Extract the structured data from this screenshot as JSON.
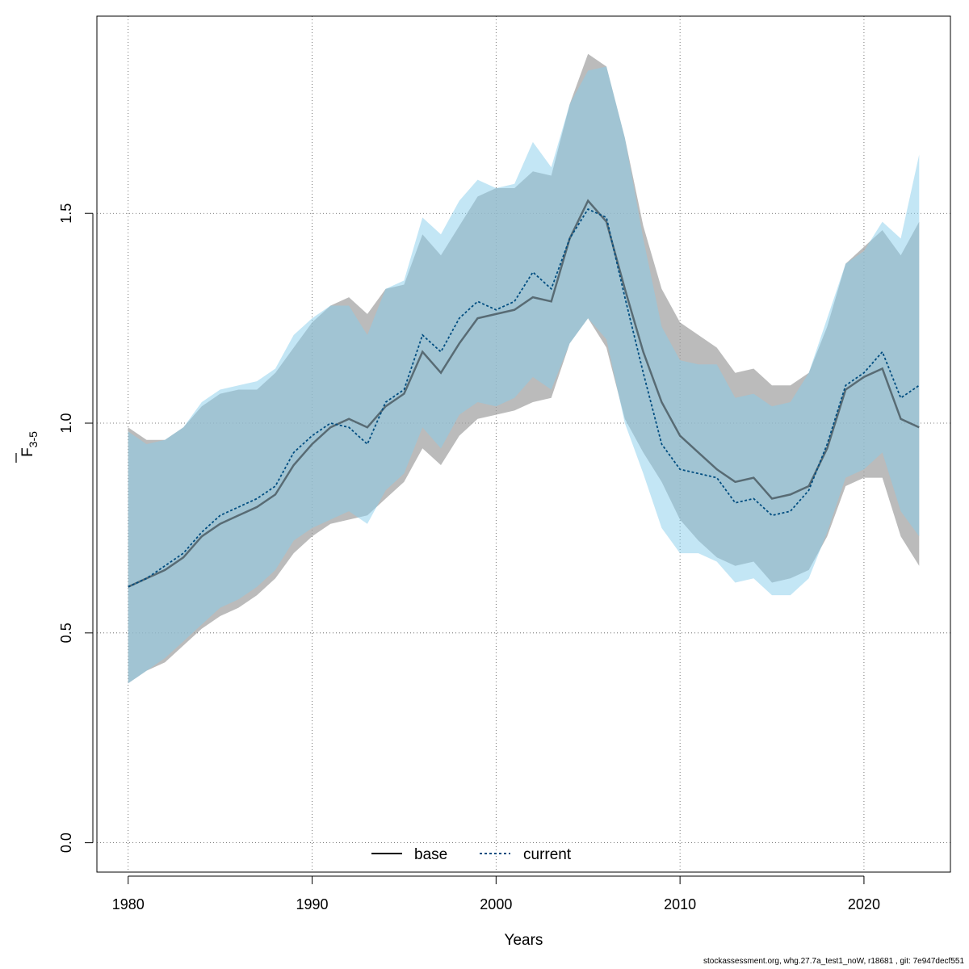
{
  "chart_data": {
    "type": "line",
    "xlabel": "Years",
    "ylabel": "F",
    "ylabel_subscript": "3-5",
    "xlim": [
      1978.3,
      2024.7
    ],
    "ylim": [
      -0.07,
      1.97
    ],
    "x_ticks": [
      1980,
      1990,
      2000,
      2010,
      2020
    ],
    "y_ticks": [
      0.0,
      0.5,
      1.0,
      1.5
    ],
    "y_tick_labels": [
      "0.0",
      "0.5",
      "1.0",
      "1.5"
    ],
    "grid": true,
    "legend": {
      "position": "bottom",
      "entries": [
        "base",
        "current"
      ]
    },
    "colors": {
      "base_band": "#9e9e9e",
      "current_band": "#87ceeb",
      "base_line": "#000000",
      "current_line": "#004d80"
    },
    "x": [
      1980,
      1981,
      1982,
      1983,
      1984,
      1985,
      1986,
      1987,
      1988,
      1989,
      1990,
      1991,
      1992,
      1993,
      1994,
      1995,
      1996,
      1997,
      1998,
      1999,
      2000,
      2001,
      2002,
      2003,
      2004,
      2005,
      2006,
      2007,
      2008,
      2009,
      2010,
      2011,
      2012,
      2013,
      2014,
      2015,
      2016,
      2017,
      2018,
      2019,
      2020,
      2021,
      2022,
      2023
    ],
    "series": [
      {
        "name": "base",
        "values": [
          0.61,
          0.63,
          0.65,
          0.68,
          0.73,
          0.76,
          0.78,
          0.8,
          0.83,
          0.9,
          0.95,
          0.99,
          1.01,
          0.99,
          1.04,
          1.07,
          1.17,
          1.12,
          1.19,
          1.25,
          1.26,
          1.27,
          1.3,
          1.29,
          1.44,
          1.53,
          1.48,
          1.32,
          1.17,
          1.05,
          0.97,
          0.93,
          0.89,
          0.86,
          0.87,
          0.82,
          0.83,
          0.85,
          0.94,
          1.08,
          1.11,
          1.13,
          1.01,
          0.99
        ],
        "lower": [
          0.38,
          0.41,
          0.43,
          0.47,
          0.51,
          0.54,
          0.56,
          0.59,
          0.63,
          0.69,
          0.73,
          0.76,
          0.77,
          0.78,
          0.82,
          0.86,
          0.94,
          0.9,
          0.97,
          1.01,
          1.02,
          1.03,
          1.05,
          1.06,
          1.19,
          1.25,
          1.18,
          1.01,
          0.93,
          0.86,
          0.77,
          0.72,
          0.68,
          0.66,
          0.67,
          0.62,
          0.63,
          0.65,
          0.73,
          0.85,
          0.87,
          0.87,
          0.73,
          0.66
        ],
        "upper": [
          0.99,
          0.96,
          0.96,
          0.99,
          1.04,
          1.07,
          1.08,
          1.08,
          1.12,
          1.18,
          1.24,
          1.28,
          1.3,
          1.26,
          1.32,
          1.33,
          1.45,
          1.4,
          1.47,
          1.54,
          1.56,
          1.56,
          1.6,
          1.59,
          1.76,
          1.88,
          1.85,
          1.68,
          1.47,
          1.32,
          1.24,
          1.21,
          1.18,
          1.12,
          1.13,
          1.09,
          1.09,
          1.12,
          1.23,
          1.38,
          1.42,
          1.46,
          1.4,
          1.48
        ]
      },
      {
        "name": "current",
        "values": [
          0.61,
          0.63,
          0.66,
          0.69,
          0.74,
          0.78,
          0.8,
          0.82,
          0.85,
          0.93,
          0.97,
          1.0,
          0.99,
          0.95,
          1.05,
          1.08,
          1.21,
          1.17,
          1.25,
          1.29,
          1.27,
          1.29,
          1.36,
          1.32,
          1.44,
          1.51,
          1.49,
          1.3,
          1.12,
          0.95,
          0.89,
          0.88,
          0.87,
          0.81,
          0.82,
          0.78,
          0.79,
          0.84,
          0.95,
          1.09,
          1.12,
          1.17,
          1.06,
          1.09
        ],
        "lower": [
          0.38,
          0.41,
          0.44,
          0.48,
          0.52,
          0.56,
          0.58,
          0.61,
          0.65,
          0.72,
          0.75,
          0.77,
          0.79,
          0.76,
          0.84,
          0.88,
          0.99,
          0.94,
          1.02,
          1.05,
          1.04,
          1.06,
          1.11,
          1.08,
          1.19,
          1.25,
          1.2,
          1.0,
          0.88,
          0.75,
          0.69,
          0.69,
          0.67,
          0.62,
          0.63,
          0.59,
          0.59,
          0.63,
          0.74,
          0.87,
          0.89,
          0.93,
          0.79,
          0.73
        ],
        "upper": [
          0.98,
          0.95,
          0.96,
          0.99,
          1.05,
          1.08,
          1.09,
          1.1,
          1.13,
          1.21,
          1.25,
          1.28,
          1.28,
          1.21,
          1.32,
          1.34,
          1.49,
          1.45,
          1.53,
          1.58,
          1.56,
          1.57,
          1.67,
          1.61,
          1.76,
          1.84,
          1.85,
          1.68,
          1.44,
          1.23,
          1.15,
          1.14,
          1.14,
          1.06,
          1.07,
          1.04,
          1.05,
          1.12,
          1.25,
          1.38,
          1.41,
          1.48,
          1.44,
          1.64
        ]
      }
    ]
  },
  "footer": "stockassessment.org, whg.27.7a_test1_noW, r18681 , git: 7e947decf551"
}
